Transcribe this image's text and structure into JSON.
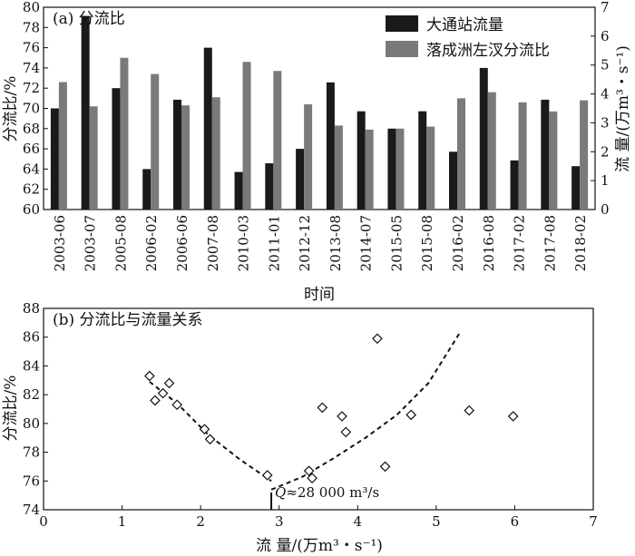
{
  "chart_data": [
    {
      "type": "bar",
      "title": "(a) 分流比",
      "xlabel": "时间",
      "ylabel": "分流比/%",
      "y2label": "流  量/(万m³・s⁻¹)",
      "ylim": [
        60,
        80
      ],
      "y2lim": [
        0,
        7
      ],
      "yticks": [
        "60",
        "62",
        "64",
        "66",
        "68",
        "70",
        "72",
        "74",
        "76",
        "78",
        "80"
      ],
      "y2ticks": [
        "0",
        "1",
        "2",
        "3",
        "4",
        "5",
        "6",
        "7"
      ],
      "categories": [
        "2003-06",
        "2003-07",
        "2005-08",
        "2006-02",
        "2006-06",
        "2007-08",
        "2010-03",
        "2011-01",
        "2012-12",
        "2013-08",
        "2014-07",
        "2015-05",
        "2015-08",
        "2016-02",
        "2016-08",
        "2017-02",
        "2017-08",
        "2018-02"
      ],
      "legend_position": "top-right",
      "series": [
        {
          "name": "大通站流量",
          "axis": "right",
          "color": "#1a1a1a",
          "values": [
            3.5,
            6.7,
            4.2,
            1.4,
            3.8,
            5.6,
            1.3,
            1.6,
            2.1,
            4.4,
            3.4,
            2.8,
            3.4,
            2.0,
            4.9,
            1.7,
            3.8,
            1.5
          ]
        },
        {
          "name": "落成洲左汊分流比",
          "axis": "left",
          "color": "#7a7a7a",
          "values": [
            72.6,
            70.2,
            75.0,
            73.4,
            70.3,
            71.1,
            74.6,
            73.7,
            70.4,
            68.3,
            67.9,
            68.0,
            68.2,
            71.0,
            71.6,
            70.6,
            69.7,
            70.8
          ]
        }
      ]
    },
    {
      "type": "scatter",
      "title": "(b) 分流比与流量关系",
      "xlabel": "流  量/(万m³・s⁻¹)",
      "ylabel": "分流比/%",
      "xlim": [
        0,
        7
      ],
      "ylim": [
        74,
        88
      ],
      "xticks": [
        "0",
        "1",
        "2",
        "3",
        "4",
        "5",
        "6",
        "7"
      ],
      "yticks": [
        "74",
        "76",
        "78",
        "80",
        "82",
        "84",
        "86",
        "88"
      ],
      "points": [
        [
          1.35,
          83.3
        ],
        [
          1.42,
          81.6
        ],
        [
          1.52,
          82.1
        ],
        [
          1.6,
          82.8
        ],
        [
          1.7,
          81.3
        ],
        [
          2.05,
          79.6
        ],
        [
          2.12,
          78.9
        ],
        [
          2.85,
          76.4
        ],
        [
          3.38,
          76.7
        ],
        [
          3.42,
          76.2
        ],
        [
          3.55,
          81.1
        ],
        [
          3.8,
          80.5
        ],
        [
          3.85,
          79.4
        ],
        [
          4.25,
          85.9
        ],
        [
          4.35,
          77.0
        ],
        [
          4.68,
          80.6
        ],
        [
          5.42,
          80.9
        ],
        [
          5.98,
          80.5
        ]
      ],
      "trend": {
        "style": "dashed",
        "branches": [
          [
            [
              1.35,
              82.9
            ],
            [
              1.7,
              81.4
            ],
            [
              2.1,
              79.2
            ],
            [
              2.5,
              77.5
            ],
            [
              2.9,
              76.0
            ]
          ],
          [
            [
              2.9,
              75.4
            ],
            [
              3.3,
              76.3
            ],
            [
              3.7,
              77.6
            ],
            [
              4.1,
              79.0
            ],
            [
              4.5,
              80.6
            ],
            [
              4.9,
              82.8
            ],
            [
              5.3,
              86.3
            ]
          ]
        ]
      },
      "threshold": {
        "x": 2.9,
        "label_q": "Q",
        "label_rest": "≈28 000 m³/s"
      }
    }
  ]
}
